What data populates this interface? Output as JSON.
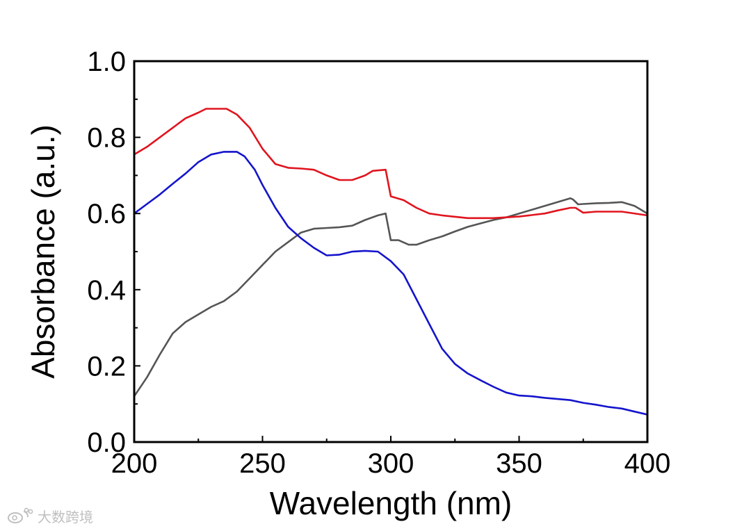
{
  "chart_data": {
    "type": "line",
    "title": "",
    "xlabel": "Wavelength (nm)",
    "ylabel": "Absorbance (a.u.)",
    "xlim": [
      200,
      400
    ],
    "ylim": [
      0.0,
      1.0
    ],
    "xticks": [
      200,
      250,
      300,
      350,
      400
    ],
    "xtick_labels": [
      "200",
      "250",
      "300",
      "350",
      "400"
    ],
    "yticks": [
      0.0,
      0.2,
      0.4,
      0.6,
      0.8,
      1.0
    ],
    "ytick_labels": [
      "0.0",
      "0.2",
      "0.4",
      "0.6",
      "0.8",
      "1.0"
    ],
    "grid": false,
    "legend": false,
    "series": [
      {
        "name": "gray",
        "color": "#555555",
        "x": [
          200,
          205,
          210,
          215,
          220,
          225,
          230,
          235,
          240,
          245,
          250,
          255,
          260,
          265,
          270,
          275,
          280,
          285,
          290,
          295,
          298,
          300,
          303,
          307,
          310,
          315,
          320,
          325,
          330,
          335,
          340,
          345,
          350,
          355,
          360,
          365,
          370,
          371,
          373,
          375,
          380,
          385,
          390,
          395,
          400
        ],
        "y": [
          0.12,
          0.17,
          0.23,
          0.285,
          0.315,
          0.335,
          0.355,
          0.37,
          0.395,
          0.43,
          0.465,
          0.5,
          0.525,
          0.55,
          0.56,
          0.562,
          0.564,
          0.568,
          0.583,
          0.595,
          0.6,
          0.53,
          0.53,
          0.518,
          0.518,
          0.53,
          0.54,
          0.553,
          0.565,
          0.574,
          0.583,
          0.59,
          0.6,
          0.61,
          0.62,
          0.63,
          0.64,
          0.637,
          0.624,
          0.625,
          0.627,
          0.628,
          0.63,
          0.62,
          0.6
        ]
      },
      {
        "name": "red",
        "color": "#e0141e",
        "x": [
          200,
          205,
          210,
          215,
          220,
          225,
          228,
          232,
          236,
          240,
          245,
          250,
          255,
          260,
          265,
          270,
          275,
          280,
          285,
          290,
          293,
          298,
          300,
          305,
          310,
          315,
          320,
          330,
          340,
          350,
          360,
          365,
          370,
          372,
          375,
          380,
          390,
          400
        ],
        "y": [
          0.755,
          0.775,
          0.8,
          0.825,
          0.85,
          0.865,
          0.875,
          0.875,
          0.875,
          0.86,
          0.825,
          0.77,
          0.73,
          0.72,
          0.718,
          0.715,
          0.7,
          0.688,
          0.688,
          0.7,
          0.712,
          0.715,
          0.645,
          0.635,
          0.615,
          0.6,
          0.595,
          0.588,
          0.588,
          0.592,
          0.6,
          0.608,
          0.615,
          0.615,
          0.602,
          0.605,
          0.605,
          0.595
        ]
      },
      {
        "name": "blue",
        "color": "#1414cc",
        "x": [
          200,
          205,
          210,
          215,
          220,
          225,
          230,
          235,
          240,
          243,
          247,
          250,
          255,
          260,
          265,
          270,
          275,
          280,
          285,
          290,
          295,
          300,
          305,
          310,
          315,
          320,
          325,
          330,
          335,
          340,
          345,
          350,
          355,
          360,
          365,
          370,
          375,
          380,
          385,
          390,
          395,
          400
        ],
        "y": [
          0.6,
          0.625,
          0.65,
          0.678,
          0.705,
          0.735,
          0.755,
          0.762,
          0.762,
          0.75,
          0.715,
          0.675,
          0.615,
          0.565,
          0.535,
          0.51,
          0.49,
          0.492,
          0.5,
          0.502,
          0.5,
          0.475,
          0.44,
          0.375,
          0.31,
          0.245,
          0.205,
          0.18,
          0.162,
          0.145,
          0.13,
          0.122,
          0.12,
          0.116,
          0.113,
          0.11,
          0.103,
          0.098,
          0.092,
          0.088,
          0.08,
          0.072
        ]
      }
    ]
  },
  "watermark": {
    "icon": "weibo-logo-icon",
    "text": "大数跨境"
  }
}
